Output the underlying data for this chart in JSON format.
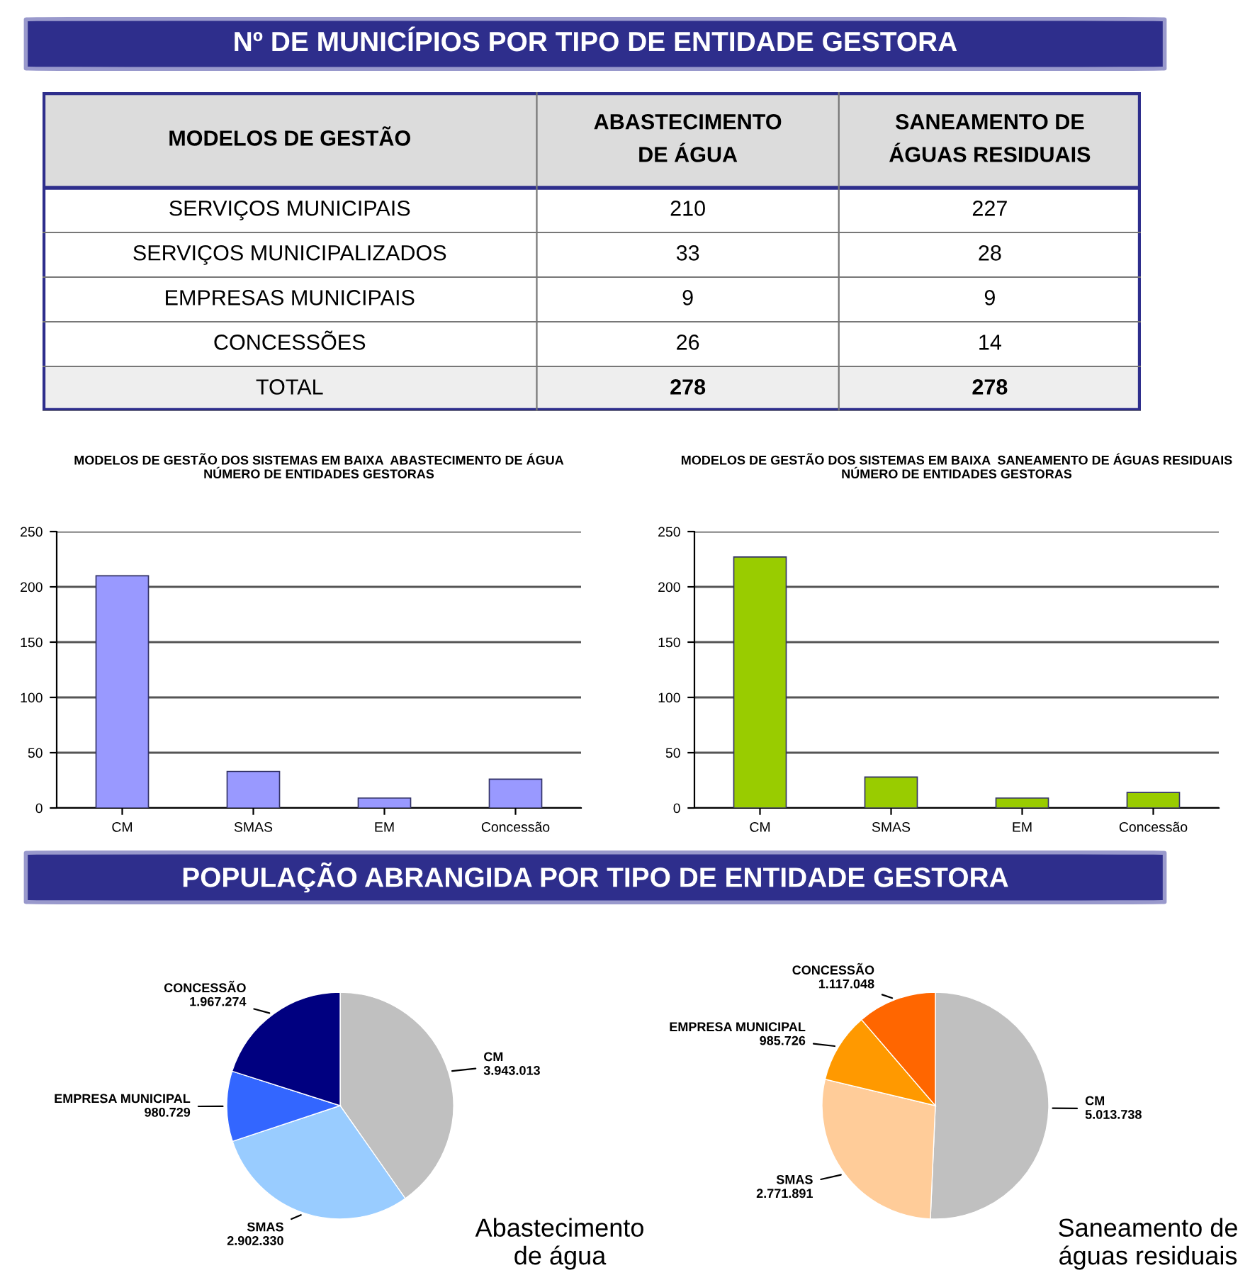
{
  "chart_data": [
    {
      "type": "heatmap",
      "title": "Nº DE MUNICÍPIOS POR TIPO DE ENTIDADE GESTORA",
      "ylabel": "MODELOS DE GESTÃO",
      "data_labels": true,
      "categories": [
        "ABASTECIMENTO DE ÁGUA",
        "SANEAMENTO DE ÁGUAS RESIDUAIS"
      ],
      "y_categories": [
        "SERVIÇOS MUNICIPAIS",
        "SERVIÇOS MUNICIPALIZADOS",
        "EMPRESAS MUNICIPAIS",
        "CONCESSÕES",
        "TOTAL"
      ],
      "cells": [
        [
          210,
          227
        ],
        [
          33,
          28
        ],
        [
          9,
          9
        ],
        [
          26,
          14
        ],
        [
          278,
          278
        ]
      ]
    },
    {
      "type": "bar",
      "title": "MODELOS DE GESTÃO DOS SISTEMAS EM BAIXA  ABASTECIMENTO DE ÁGUA",
      "subtitle": "NÚMERO DE ENTIDADES GESTORAS",
      "categories": [
        "CM",
        "SMAS",
        "EM",
        "Concessão"
      ],
      "values": [
        210,
        33,
        9,
        26
      ],
      "color": "#9999ff",
      "ylim": [
        0,
        250
      ],
      "yticks": [
        0,
        50,
        100,
        150,
        200,
        250
      ],
      "grid": "y"
    },
    {
      "type": "bar",
      "title": "MODELOS DE GESTÃO DOS SISTEMAS EM BAIXA  SANEAMENTO DE ÁGUAS RESIDUAIS",
      "subtitle": "NÚMERO DE ENTIDADES GESTORAS",
      "categories": [
        "CM",
        "SMAS",
        "EM",
        "Concessão"
      ],
      "values": [
        227,
        28,
        9,
        14
      ],
      "color": "#99cc00",
      "ylim": [
        0,
        250
      ],
      "yticks": [
        0,
        50,
        100,
        150,
        200,
        250
      ],
      "grid": "y"
    },
    {
      "type": "pie",
      "title": "Abastecimento de água",
      "annotations": [
        "POPULAÇÃO ABRANGIDA POR TIPO DE ENTIDADE GESTORA"
      ],
      "categories": [
        "CM",
        "SMAS",
        "EMPRESA MUNICIPAL",
        "CONCESSÃO"
      ],
      "values": [
        3943013,
        2902330,
        980729,
        1967274
      ],
      "value_labels": [
        "3.943.013",
        "2.902.330",
        "980.729",
        "1.967.274"
      ],
      "colors": [
        "#c0c0c0",
        "#99ccff",
        "#3366ff",
        "#000080"
      ]
    },
    {
      "type": "pie",
      "title": "Saneamento de águas residuais",
      "categories": [
        "CM",
        "SMAS",
        "EMPRESA MUNICIPAL",
        "CONCESSÃO"
      ],
      "values": [
        5013738,
        2771891,
        985726,
        1117048
      ],
      "value_labels": [
        "5.013.738",
        "2.771.891",
        "985.726",
        "1.117.048"
      ],
      "colors": [
        "#c0c0c0",
        "#ffcc99",
        "#ff9900",
        "#ff6600"
      ]
    }
  ]
}
